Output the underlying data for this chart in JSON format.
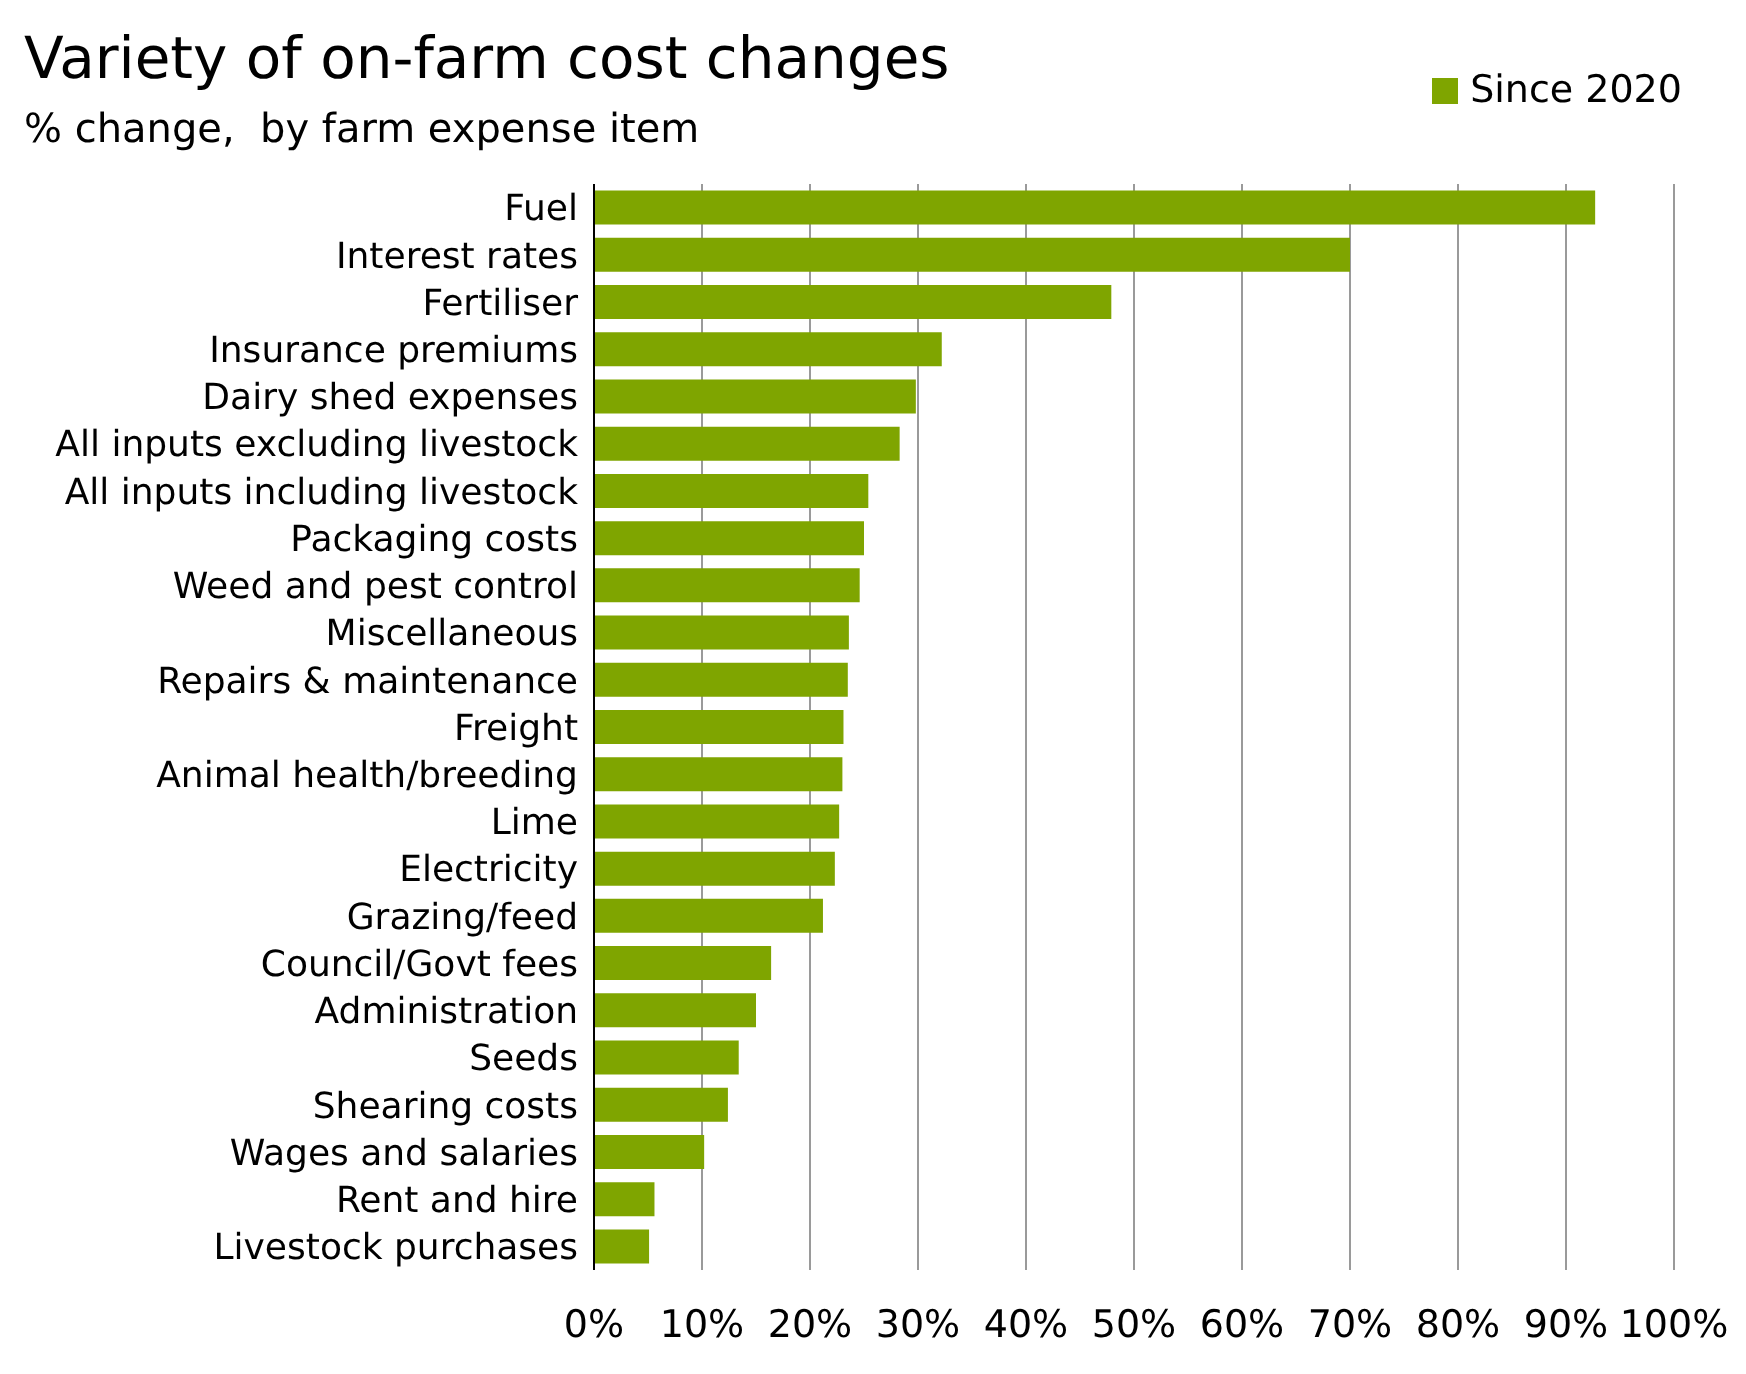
{
  "chart_data": {
    "type": "bar",
    "orientation": "horizontal",
    "title": "Variety of on-farm cost changes",
    "subtitle": "% change,  by farm expense item",
    "categories": [
      "Fuel",
      "Interest rates",
      "Fertiliser",
      "Insurance premiums",
      "Dairy shed expenses",
      "All inputs excluding livestock",
      "All inputs including livestock",
      "Packaging costs",
      "Weed and pest control",
      "Miscellaneous",
      "Repairs & maintenance",
      "Freight",
      "Animal health/breeding",
      "Lime",
      "Electricity",
      "Grazing/feed",
      "Council/Govt fees",
      "Administration",
      "Seeds",
      "Shearing costs",
      "Wages and salaries",
      "Rent and hire",
      "Livestock purchases"
    ],
    "series": [
      {
        "name": "Since 2020",
        "color": "#7fa500",
        "values": [
          92.7,
          70,
          47.9,
          32.2,
          29.8,
          28.3,
          25.4,
          25.0,
          24.6,
          23.6,
          23.5,
          23.1,
          23.0,
          22.7,
          22.3,
          21.2,
          16.4,
          15.0,
          13.4,
          12.4,
          10.2,
          5.6,
          5.1
        ]
      }
    ],
    "xlim": [
      0,
      100
    ],
    "xticks": [
      {
        "value": 0,
        "label": "0%"
      },
      {
        "value": 10,
        "label": "10%"
      },
      {
        "value": 20,
        "label": "20%"
      },
      {
        "value": 30,
        "label": "30%"
      },
      {
        "value": 40,
        "label": "40%"
      },
      {
        "value": 50,
        "label": "50%"
      },
      {
        "value": 60,
        "label": "60%"
      },
      {
        "value": 70,
        "label": "70%"
      },
      {
        "value": 80,
        "label": "80%"
      },
      {
        "value": 90,
        "label": "90%"
      },
      {
        "value": 100,
        "label": "100%"
      }
    ],
    "grid": "x",
    "legend": "top right"
  }
}
